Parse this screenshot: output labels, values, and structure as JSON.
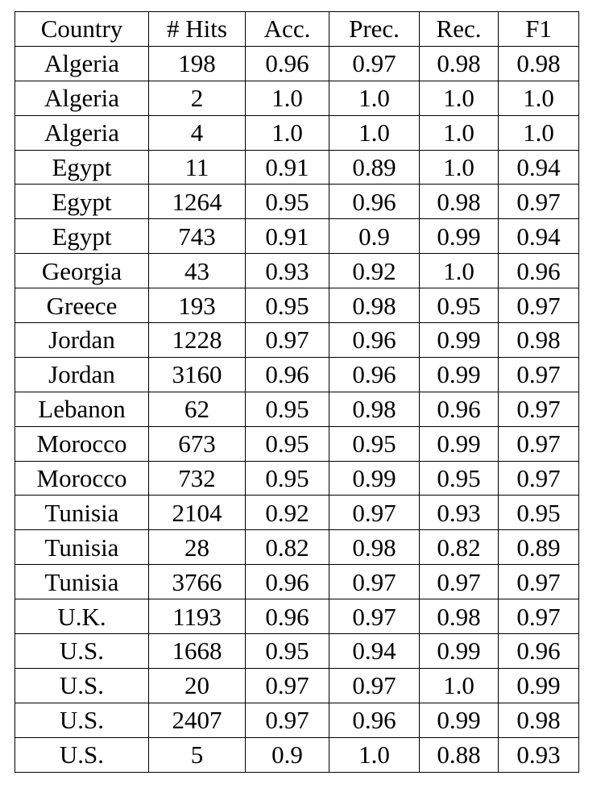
{
  "table": {
    "headers": [
      "Country",
      "# Hits",
      "Acc.",
      "Prec.",
      "Rec.",
      "F1"
    ],
    "rows": [
      [
        "Algeria",
        "198",
        "0.96",
        "0.97",
        "0.98",
        "0.98"
      ],
      [
        "Algeria",
        "2",
        "1.0",
        "1.0",
        "1.0",
        "1.0"
      ],
      [
        "Algeria",
        "4",
        "1.0",
        "1.0",
        "1.0",
        "1.0"
      ],
      [
        "Egypt",
        "11",
        "0.91",
        "0.89",
        "1.0",
        "0.94"
      ],
      [
        "Egypt",
        "1264",
        "0.95",
        "0.96",
        "0.98",
        "0.97"
      ],
      [
        "Egypt",
        "743",
        "0.91",
        "0.9",
        "0.99",
        "0.94"
      ],
      [
        "Georgia",
        "43",
        "0.93",
        "0.92",
        "1.0",
        "0.96"
      ],
      [
        "Greece",
        "193",
        "0.95",
        "0.98",
        "0.95",
        "0.97"
      ],
      [
        "Jordan",
        "1228",
        "0.97",
        "0.96",
        "0.99",
        "0.98"
      ],
      [
        "Jordan",
        "3160",
        "0.96",
        "0.96",
        "0.99",
        "0.97"
      ],
      [
        "Lebanon",
        "62",
        "0.95",
        "0.98",
        "0.96",
        "0.97"
      ],
      [
        "Morocco",
        "673",
        "0.95",
        "0.95",
        "0.99",
        "0.97"
      ],
      [
        "Morocco",
        "732",
        "0.95",
        "0.99",
        "0.95",
        "0.97"
      ],
      [
        "Tunisia",
        "2104",
        "0.92",
        "0.97",
        "0.93",
        "0.95"
      ],
      [
        "Tunisia",
        "28",
        "0.82",
        "0.98",
        "0.82",
        "0.89"
      ],
      [
        "Tunisia",
        "3766",
        "0.96",
        "0.97",
        "0.97",
        "0.97"
      ],
      [
        "U.K.",
        "1193",
        "0.96",
        "0.97",
        "0.98",
        "0.97"
      ],
      [
        "U.S.",
        "1668",
        "0.95",
        "0.94",
        "0.99",
        "0.96"
      ],
      [
        "U.S.",
        "20",
        "0.97",
        "0.97",
        "1.0",
        "0.99"
      ],
      [
        "U.S.",
        "2407",
        "0.97",
        "0.96",
        "0.99",
        "0.98"
      ],
      [
        "U.S.",
        "5",
        "0.9",
        "1.0",
        "0.88",
        "0.93"
      ]
    ]
  }
}
